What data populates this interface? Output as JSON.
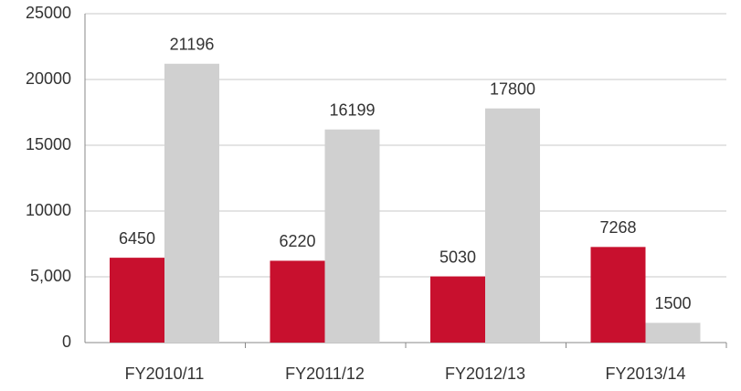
{
  "chart_data": {
    "type": "bar",
    "categories": [
      "FY2010/11",
      "FY2011/12",
      "FY2012/13",
      "FY2013/14"
    ],
    "series": [
      {
        "color": "#c8102e",
        "values": [
          6450,
          6220,
          5030,
          7268
        ]
      },
      {
        "color": "#d0d0d0",
        "values": [
          21196,
          16199,
          17800,
          1500
        ]
      }
    ],
    "ylim": [
      0,
      25000
    ],
    "yticks": [
      0,
      {
        "value": 5000,
        "label": "5,000"
      },
      10000,
      15000,
      20000,
      25000
    ],
    "grid": true
  }
}
